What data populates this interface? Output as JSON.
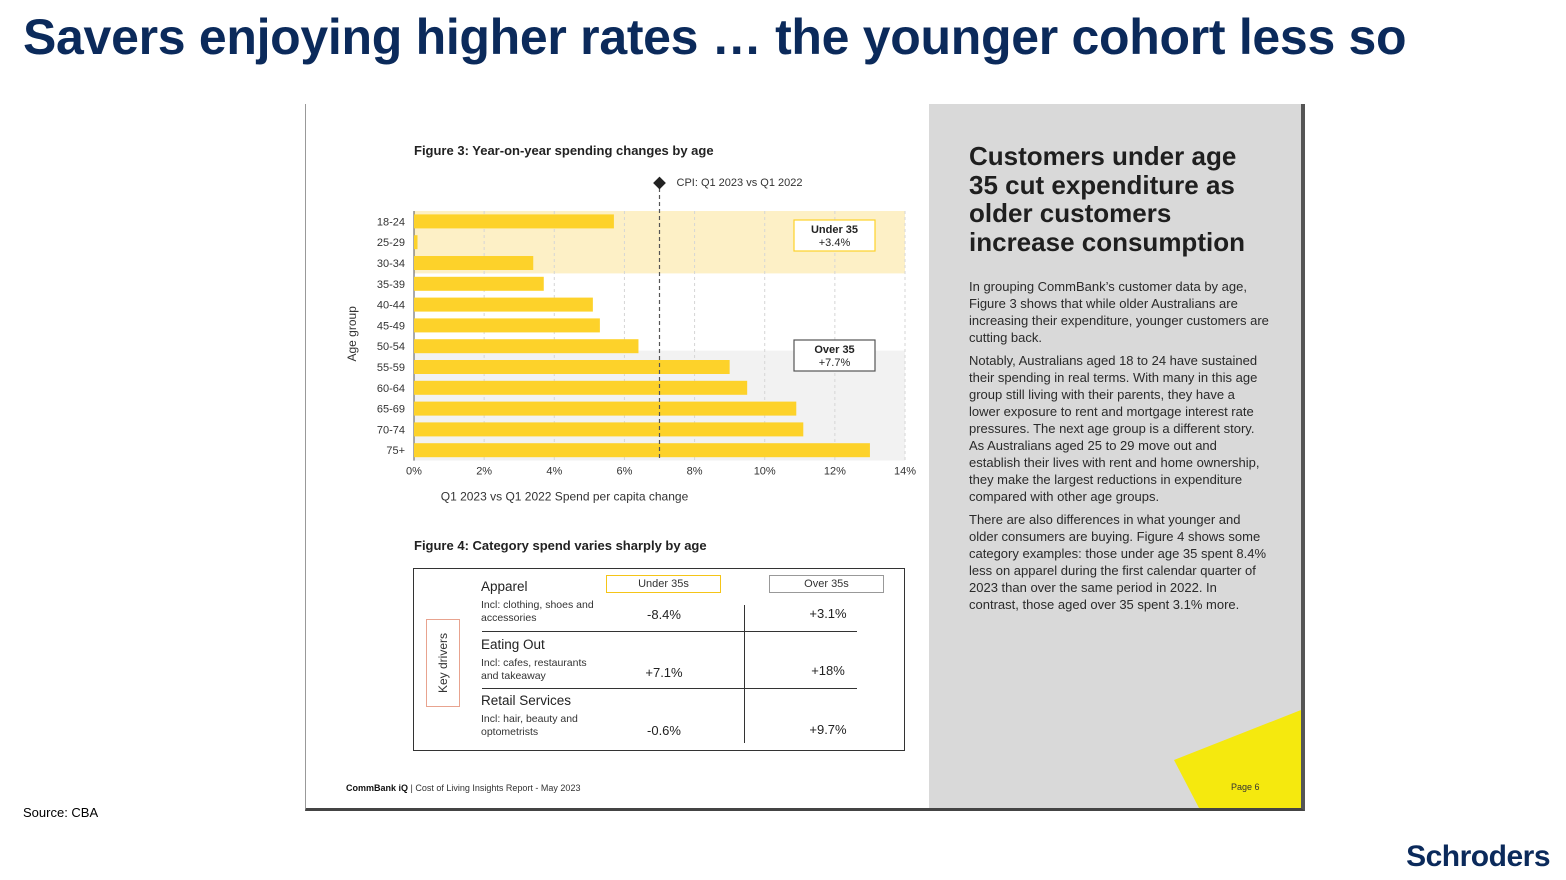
{
  "slide": {
    "title": "Savers enjoying higher rates … the younger cohort less so",
    "source": "Source: CBA",
    "brand": "Schroders"
  },
  "report": {
    "fig3_title": "Figure 3: Year-on-year spending changes by age",
    "fig4_title": "Figure 4: Category spend varies sharply by age",
    "footer_brand": "CommBank iQ",
    "footer_text": "| Cost of Living Insights Report - May 2023",
    "page_label": "Page 6",
    "right_heading": "Customers under age 35 cut expenditure as older customers increase consumption",
    "right_paragraphs": [
      "In grouping CommBank’s customer data by age, Figure 3 shows that while older Australians are increasing their expenditure, younger customers are cutting back.",
      "Notably, Australians aged 18 to 24 have sustained their spending in real terms. With many in this age group still living with their parents, they have a lower exposure to rent and mortgage interest rate pressures. The next age group is a different story. As Australians aged 25 to 29 move out and establish their lives with rent and home ownership, they make the largest reductions in expenditure compared with other age groups.",
      "There are also differences in what younger and older consumers are buying. Figure 4 shows some category examples: those under age 35 spent 8.4% less on apparel during the first calendar quarter of 2023 than over the same period in 2022. In contrast, those aged over 35 spent 3.1% more."
    ],
    "table": {
      "key_drivers": "Key drivers",
      "col_under": "Under 35s",
      "col_over": "Over 35s",
      "rows": [
        {
          "name": "Apparel",
          "desc": "Incl: clothing, shoes and accessories",
          "under": "-8.4%",
          "over": "+3.1%"
        },
        {
          "name": "Eating Out",
          "desc": "Incl: cafes, restaurants and takeaway",
          "under": "+7.1%",
          "over": "+18%"
        },
        {
          "name": "Retail Services",
          "desc": "Incl: hair, beauty and optometrists",
          "under": "-0.6%",
          "over": "+9.7%"
        }
      ]
    }
  },
  "colors": {
    "bar": "#fdd22a",
    "under_band": "#fdf0c6",
    "over_band": "#f2f2f2",
    "title": "#0b2a5b",
    "accent_yellow": "#f5e90e"
  },
  "chart_data": {
    "type": "bar",
    "orientation": "horizontal",
    "categories": [
      "18-24",
      "25-29",
      "30-34",
      "35-39",
      "40-44",
      "45-49",
      "50-54",
      "55-59",
      "60-64",
      "65-69",
      "70-74",
      "75+"
    ],
    "values": [
      5.7,
      0.1,
      3.4,
      3.7,
      5.1,
      5.3,
      6.4,
      9.0,
      9.5,
      10.9,
      11.1,
      13.0
    ],
    "xlabel": "Q1 2023 vs Q1 2022 Spend per capita change",
    "ylabel": "Age group",
    "xlim": [
      0,
      14
    ],
    "xticks": [
      "0%",
      "2%",
      "4%",
      "6%",
      "8%",
      "10%",
      "12%",
      "14%"
    ],
    "cpi_line": {
      "value": 7.0,
      "label": "CPI: Q1 2023 vs Q1 2022"
    },
    "annotations": [
      {
        "label": "Under 35",
        "value": "+3.4%"
      },
      {
        "label": "Over 35",
        "value": "+7.7%"
      }
    ]
  }
}
